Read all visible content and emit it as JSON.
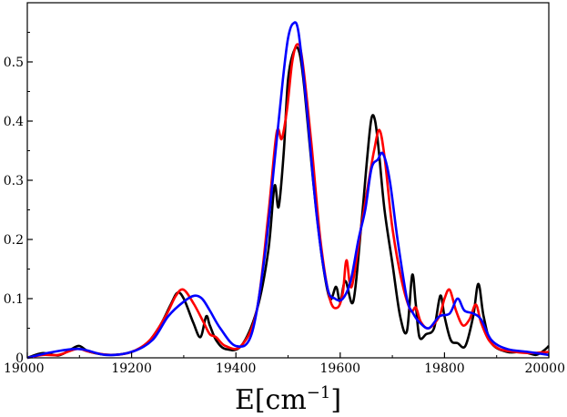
{
  "chart_data": {
    "type": "line",
    "title": "",
    "xlabel": "E[cm",
    "xlabel_superscript": "−1",
    "xlabel_close": "]",
    "ylabel": "",
    "xlim": [
      19000,
      20000
    ],
    "ylim": [
      0,
      0.6
    ],
    "x_ticks": [
      19000,
      19200,
      19400,
      19600,
      19800,
      20000
    ],
    "y_ticks": [
      0,
      0.1,
      0.2,
      0.3,
      0.4,
      0.5
    ],
    "x_tick_labels": [
      "19000",
      "19200",
      "19400",
      "19600",
      "19800",
      "20000"
    ],
    "y_tick_labels": [
      "0",
      "0.1",
      "0.2",
      "0.3",
      "0.4",
      "0.5"
    ],
    "grid": false,
    "legend": "none",
    "series": [
      {
        "color": "#000000",
        "x": [
          19000,
          19030,
          19060,
          19085,
          19100,
          19120,
          19160,
          19200,
          19230,
          19255,
          19275,
          19288,
          19300,
          19318,
          19332,
          19343,
          19350,
          19362,
          19380,
          19410,
          19440,
          19462,
          19474,
          19482,
          19492,
          19500,
          19512,
          19522,
          19532,
          19548,
          19565,
          19580,
          19592,
          19600,
          19610,
          19625,
          19640,
          19652,
          19660,
          19667,
          19674,
          19685,
          19700,
          19715,
          19728,
          19738,
          19745,
          19752,
          19765,
          19780,
          19792,
          19800,
          19812,
          19825,
          19840,
          19855,
          19865,
          19875,
          19890,
          19920,
          19950,
          19975,
          19990,
          20000
        ],
        "y": [
          0.0,
          0.008,
          0.004,
          0.015,
          0.02,
          0.01,
          0.005,
          0.01,
          0.025,
          0.055,
          0.09,
          0.11,
          0.1,
          0.06,
          0.035,
          0.07,
          0.055,
          0.03,
          0.015,
          0.02,
          0.08,
          0.18,
          0.29,
          0.255,
          0.35,
          0.47,
          0.52,
          0.515,
          0.45,
          0.3,
          0.17,
          0.1,
          0.12,
          0.095,
          0.13,
          0.095,
          0.22,
          0.34,
          0.405,
          0.4,
          0.35,
          0.25,
          0.16,
          0.07,
          0.045,
          0.14,
          0.09,
          0.035,
          0.04,
          0.05,
          0.105,
          0.07,
          0.03,
          0.025,
          0.02,
          0.07,
          0.125,
          0.07,
          0.025,
          0.01,
          0.01,
          0.005,
          0.012,
          0.02
        ]
      },
      {
        "color": "#ff0000",
        "x": [
          19000,
          19030,
          19060,
          19095,
          19120,
          19160,
          19200,
          19235,
          19265,
          19285,
          19300,
          19320,
          19338,
          19350,
          19362,
          19380,
          19410,
          19440,
          19462,
          19478,
          19488,
          19498,
          19508,
          19518,
          19528,
          19545,
          19562,
          19580,
          19595,
          19605,
          19612,
          19622,
          19640,
          19655,
          19665,
          19675,
          19685,
          19700,
          19718,
          19735,
          19745,
          19755,
          19770,
          19790,
          19800,
          19810,
          19822,
          19835,
          19848,
          19860,
          19870,
          19885,
          19905,
          19935,
          19965,
          20000
        ],
        "y": [
          0.0,
          0.005,
          0.005,
          0.015,
          0.01,
          0.005,
          0.01,
          0.03,
          0.07,
          0.105,
          0.115,
          0.09,
          0.06,
          0.04,
          0.035,
          0.02,
          0.02,
          0.08,
          0.24,
          0.38,
          0.37,
          0.42,
          0.5,
          0.53,
          0.5,
          0.36,
          0.2,
          0.1,
          0.085,
          0.11,
          0.165,
          0.12,
          0.22,
          0.3,
          0.35,
          0.385,
          0.34,
          0.22,
          0.13,
          0.08,
          0.085,
          0.06,
          0.05,
          0.07,
          0.1,
          0.115,
          0.08,
          0.055,
          0.065,
          0.09,
          0.06,
          0.03,
          0.015,
          0.01,
          0.008,
          0.01
        ]
      },
      {
        "color": "#0000ff",
        "x": [
          19000,
          19050,
          19100,
          19150,
          19200,
          19240,
          19270,
          19300,
          19320,
          19335,
          19350,
          19370,
          19400,
          19430,
          19455,
          19475,
          19490,
          19500,
          19510,
          19520,
          19535,
          19555,
          19575,
          19590,
          19605,
          19620,
          19635,
          19648,
          19660,
          19672,
          19682,
          19695,
          19710,
          19728,
          19740,
          19752,
          19770,
          19790,
          19810,
          19825,
          19838,
          19855,
          19870,
          19890,
          19920,
          19960,
          20000
        ],
        "y": [
          0.0,
          0.01,
          0.015,
          0.005,
          0.01,
          0.03,
          0.07,
          0.095,
          0.105,
          0.1,
          0.08,
          0.05,
          0.02,
          0.04,
          0.17,
          0.34,
          0.47,
          0.54,
          0.565,
          0.55,
          0.43,
          0.24,
          0.12,
          0.1,
          0.1,
          0.13,
          0.2,
          0.25,
          0.32,
          0.335,
          0.345,
          0.3,
          0.2,
          0.1,
          0.075,
          0.06,
          0.05,
          0.07,
          0.075,
          0.1,
          0.08,
          0.075,
          0.065,
          0.03,
          0.015,
          0.01,
          0.005
        ]
      }
    ]
  }
}
